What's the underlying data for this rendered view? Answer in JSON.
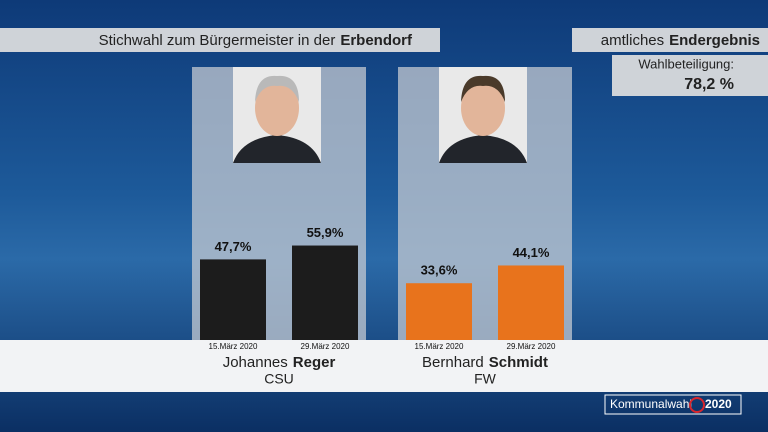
{
  "header": {
    "title_prefix": "Stichwahl zum Bürgermeister in der",
    "title_place": "Erbendorf",
    "status_prefix": "amtliches",
    "status": "Endergebnis"
  },
  "turnout": {
    "label": "Wahlbeteiligung:",
    "value": "78,2 %"
  },
  "chart_data": [
    {
      "type": "bar",
      "candidate": {
        "first_name": "Johannes",
        "last_name": "Reger",
        "party": "CSU"
      },
      "categories": [
        "15.März 2020",
        "29.März 2020"
      ],
      "values": [
        47.7,
        55.9
      ],
      "value_labels": [
        "47,7%",
        "55,9%"
      ],
      "color": "#1c1c1c"
    },
    {
      "type": "bar",
      "candidate": {
        "first_name": "Bernhard",
        "last_name": "Schmidt",
        "party": "FW"
      },
      "categories": [
        "15.März 2020",
        "29.März 2020"
      ],
      "values": [
        33.6,
        44.1
      ],
      "value_labels": [
        "33,6%",
        "44,1%"
      ],
      "color": "#e8731c"
    }
  ],
  "footer": {
    "brand": "Kommunalwahl",
    "year": "2020"
  }
}
